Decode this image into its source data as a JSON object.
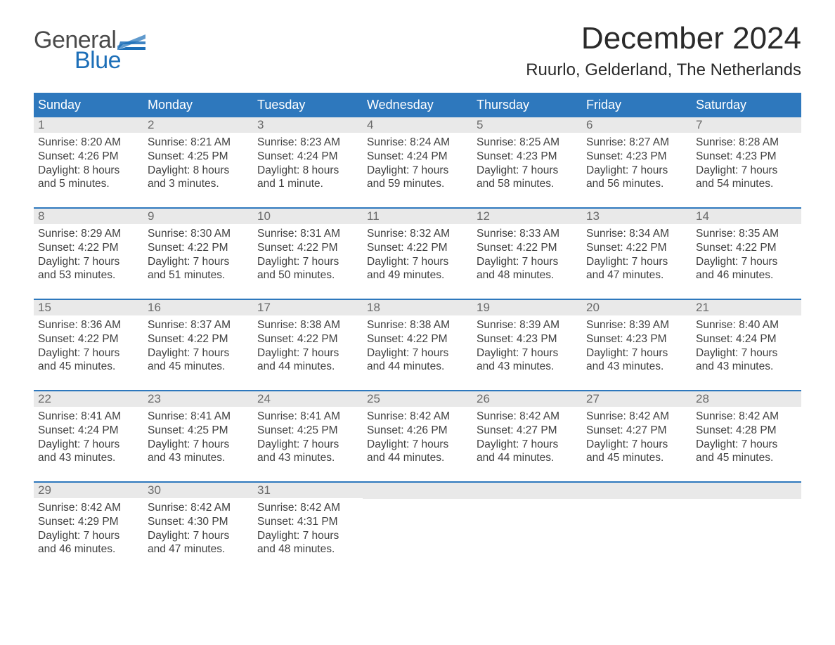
{
  "logo": {
    "text1": "General",
    "text2": "Blue",
    "flag_color": "#1d6fb8"
  },
  "title": "December 2024",
  "location": "Ruurlo, Gelderland, The Netherlands",
  "colors": {
    "header_bg": "#2e78bd",
    "header_text": "#ffffff",
    "daynum_bg": "#e9e9e9",
    "daynum_text": "#6a6a6a",
    "body_text": "#404040",
    "week_divider": "#2e78bd",
    "page_bg": "#ffffff"
  },
  "weekdays": [
    "Sunday",
    "Monday",
    "Tuesday",
    "Wednesday",
    "Thursday",
    "Friday",
    "Saturday"
  ],
  "weeks": [
    [
      {
        "n": "1",
        "sunrise": "8:20 AM",
        "sunset": "4:26 PM",
        "dl1": "Daylight: 8 hours",
        "dl2": "and 5 minutes."
      },
      {
        "n": "2",
        "sunrise": "8:21 AM",
        "sunset": "4:25 PM",
        "dl1": "Daylight: 8 hours",
        "dl2": "and 3 minutes."
      },
      {
        "n": "3",
        "sunrise": "8:23 AM",
        "sunset": "4:24 PM",
        "dl1": "Daylight: 8 hours",
        "dl2": "and 1 minute."
      },
      {
        "n": "4",
        "sunrise": "8:24 AM",
        "sunset": "4:24 PM",
        "dl1": "Daylight: 7 hours",
        "dl2": "and 59 minutes."
      },
      {
        "n": "5",
        "sunrise": "8:25 AM",
        "sunset": "4:23 PM",
        "dl1": "Daylight: 7 hours",
        "dl2": "and 58 minutes."
      },
      {
        "n": "6",
        "sunrise": "8:27 AM",
        "sunset": "4:23 PM",
        "dl1": "Daylight: 7 hours",
        "dl2": "and 56 minutes."
      },
      {
        "n": "7",
        "sunrise": "8:28 AM",
        "sunset": "4:23 PM",
        "dl1": "Daylight: 7 hours",
        "dl2": "and 54 minutes."
      }
    ],
    [
      {
        "n": "8",
        "sunrise": "8:29 AM",
        "sunset": "4:22 PM",
        "dl1": "Daylight: 7 hours",
        "dl2": "and 53 minutes."
      },
      {
        "n": "9",
        "sunrise": "8:30 AM",
        "sunset": "4:22 PM",
        "dl1": "Daylight: 7 hours",
        "dl2": "and 51 minutes."
      },
      {
        "n": "10",
        "sunrise": "8:31 AM",
        "sunset": "4:22 PM",
        "dl1": "Daylight: 7 hours",
        "dl2": "and 50 minutes."
      },
      {
        "n": "11",
        "sunrise": "8:32 AM",
        "sunset": "4:22 PM",
        "dl1": "Daylight: 7 hours",
        "dl2": "and 49 minutes."
      },
      {
        "n": "12",
        "sunrise": "8:33 AM",
        "sunset": "4:22 PM",
        "dl1": "Daylight: 7 hours",
        "dl2": "and 48 minutes."
      },
      {
        "n": "13",
        "sunrise": "8:34 AM",
        "sunset": "4:22 PM",
        "dl1": "Daylight: 7 hours",
        "dl2": "and 47 minutes."
      },
      {
        "n": "14",
        "sunrise": "8:35 AM",
        "sunset": "4:22 PM",
        "dl1": "Daylight: 7 hours",
        "dl2": "and 46 minutes."
      }
    ],
    [
      {
        "n": "15",
        "sunrise": "8:36 AM",
        "sunset": "4:22 PM",
        "dl1": "Daylight: 7 hours",
        "dl2": "and 45 minutes."
      },
      {
        "n": "16",
        "sunrise": "8:37 AM",
        "sunset": "4:22 PM",
        "dl1": "Daylight: 7 hours",
        "dl2": "and 45 minutes."
      },
      {
        "n": "17",
        "sunrise": "8:38 AM",
        "sunset": "4:22 PM",
        "dl1": "Daylight: 7 hours",
        "dl2": "and 44 minutes."
      },
      {
        "n": "18",
        "sunrise": "8:38 AM",
        "sunset": "4:22 PM",
        "dl1": "Daylight: 7 hours",
        "dl2": "and 44 minutes."
      },
      {
        "n": "19",
        "sunrise": "8:39 AM",
        "sunset": "4:23 PM",
        "dl1": "Daylight: 7 hours",
        "dl2": "and 43 minutes."
      },
      {
        "n": "20",
        "sunrise": "8:39 AM",
        "sunset": "4:23 PM",
        "dl1": "Daylight: 7 hours",
        "dl2": "and 43 minutes."
      },
      {
        "n": "21",
        "sunrise": "8:40 AM",
        "sunset": "4:24 PM",
        "dl1": "Daylight: 7 hours",
        "dl2": "and 43 minutes."
      }
    ],
    [
      {
        "n": "22",
        "sunrise": "8:41 AM",
        "sunset": "4:24 PM",
        "dl1": "Daylight: 7 hours",
        "dl2": "and 43 minutes."
      },
      {
        "n": "23",
        "sunrise": "8:41 AM",
        "sunset": "4:25 PM",
        "dl1": "Daylight: 7 hours",
        "dl2": "and 43 minutes."
      },
      {
        "n": "24",
        "sunrise": "8:41 AM",
        "sunset": "4:25 PM",
        "dl1": "Daylight: 7 hours",
        "dl2": "and 43 minutes."
      },
      {
        "n": "25",
        "sunrise": "8:42 AM",
        "sunset": "4:26 PM",
        "dl1": "Daylight: 7 hours",
        "dl2": "and 44 minutes."
      },
      {
        "n": "26",
        "sunrise": "8:42 AM",
        "sunset": "4:27 PM",
        "dl1": "Daylight: 7 hours",
        "dl2": "and 44 minutes."
      },
      {
        "n": "27",
        "sunrise": "8:42 AM",
        "sunset": "4:27 PM",
        "dl1": "Daylight: 7 hours",
        "dl2": "and 45 minutes."
      },
      {
        "n": "28",
        "sunrise": "8:42 AM",
        "sunset": "4:28 PM",
        "dl1": "Daylight: 7 hours",
        "dl2": "and 45 minutes."
      }
    ],
    [
      {
        "n": "29",
        "sunrise": "8:42 AM",
        "sunset": "4:29 PM",
        "dl1": "Daylight: 7 hours",
        "dl2": "and 46 minutes."
      },
      {
        "n": "30",
        "sunrise": "8:42 AM",
        "sunset": "4:30 PM",
        "dl1": "Daylight: 7 hours",
        "dl2": "and 47 minutes."
      },
      {
        "n": "31",
        "sunrise": "8:42 AM",
        "sunset": "4:31 PM",
        "dl1": "Daylight: 7 hours",
        "dl2": "and 48 minutes."
      },
      null,
      null,
      null,
      null
    ]
  ],
  "labels": {
    "sunrise_prefix": "Sunrise: ",
    "sunset_prefix": "Sunset: "
  }
}
